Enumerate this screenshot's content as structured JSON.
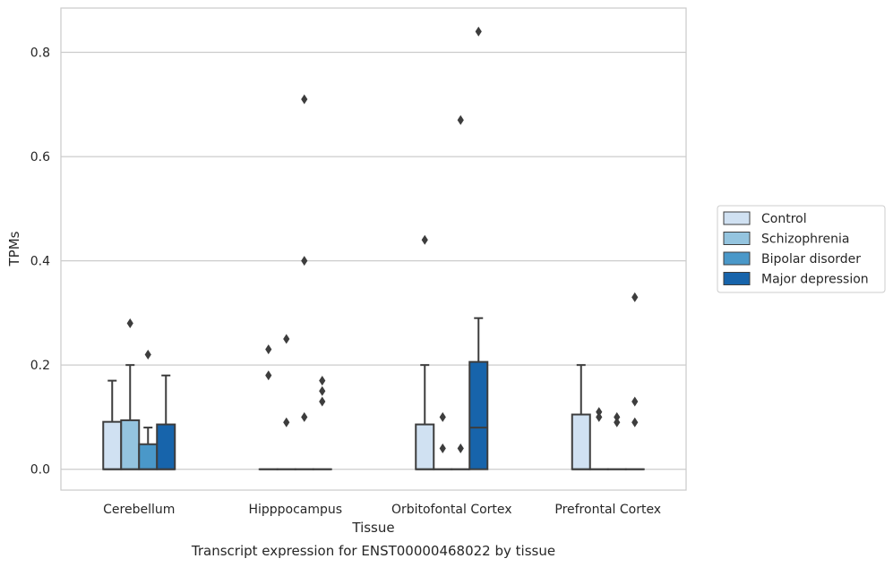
{
  "chart_data": {
    "type": "box",
    "xlabel": "Tissue",
    "ylabel": "TPMs",
    "caption": "Transcript expression for ENST00000468022 by tissue",
    "ylim": [
      -0.04,
      0.885
    ],
    "yticks": [
      0.0,
      0.2,
      0.4,
      0.6,
      0.8
    ],
    "ytick_labels": [
      "0.0",
      "0.2",
      "0.4",
      "0.6",
      "0.8"
    ],
    "grid": "horizontal",
    "legend_position": "right",
    "categories": [
      "Cerebellum",
      "Hipppocampus",
      "Orbitofontal Cortex",
      "Prefrontal Cortex"
    ],
    "series": [
      {
        "name": "Control",
        "color": "#d0e1f2",
        "boxes": [
          {
            "q1": 0.0,
            "median": 0.0,
            "q3": 0.091,
            "whisker_low": 0.0,
            "whisker_high": 0.17,
            "outliers": []
          },
          {
            "q1": 0.0,
            "median": 0.0,
            "q3": 0.0,
            "whisker_low": 0.0,
            "whisker_high": 0.0,
            "outliers": [
              0.23,
              0.18
            ]
          },
          {
            "q1": 0.0,
            "median": 0.0,
            "q3": 0.086,
            "whisker_low": 0.0,
            "whisker_high": 0.2,
            "outliers": [
              0.44
            ]
          },
          {
            "q1": 0.0,
            "median": 0.0,
            "q3": 0.105,
            "whisker_low": 0.0,
            "whisker_high": 0.2,
            "outliers": []
          }
        ]
      },
      {
        "name": "Schizophrenia",
        "color": "#94c4df",
        "boxes": [
          {
            "q1": 0.0,
            "median": 0.0,
            "q3": 0.094,
            "whisker_low": 0.0,
            "whisker_high": 0.2,
            "outliers": [
              0.28
            ]
          },
          {
            "q1": 0.0,
            "median": 0.0,
            "q3": 0.0,
            "whisker_low": 0.0,
            "whisker_high": 0.0,
            "outliers": [
              0.25,
              0.09
            ]
          },
          {
            "q1": 0.0,
            "median": 0.0,
            "q3": 0.0,
            "whisker_low": 0.0,
            "whisker_high": 0.0,
            "outliers": [
              0.1,
              0.04
            ]
          },
          {
            "q1": 0.0,
            "median": 0.0,
            "q3": 0.0,
            "whisker_low": 0.0,
            "whisker_high": 0.0,
            "outliers": [
              0.11,
              0.1
            ]
          }
        ]
      },
      {
        "name": "Bipolar disorder",
        "color": "#4a98c9",
        "boxes": [
          {
            "q1": 0.0,
            "median": 0.0,
            "q3": 0.048,
            "whisker_low": 0.0,
            "whisker_high": 0.08,
            "outliers": [
              0.22
            ]
          },
          {
            "q1": 0.0,
            "median": 0.0,
            "q3": 0.0,
            "whisker_low": 0.0,
            "whisker_high": 0.0,
            "outliers": [
              0.71,
              0.4,
              0.1
            ]
          },
          {
            "q1": 0.0,
            "median": 0.0,
            "q3": 0.0,
            "whisker_low": 0.0,
            "whisker_high": 0.0,
            "outliers": [
              0.67,
              0.04
            ]
          },
          {
            "q1": 0.0,
            "median": 0.0,
            "q3": 0.0,
            "whisker_low": 0.0,
            "whisker_high": 0.0,
            "outliers": [
              0.1,
              0.09
            ]
          }
        ]
      },
      {
        "name": "Major depression",
        "color": "#1764ab",
        "boxes": [
          {
            "q1": 0.0,
            "median": 0.0,
            "q3": 0.086,
            "whisker_low": 0.0,
            "whisker_high": 0.18,
            "outliers": []
          },
          {
            "q1": 0.0,
            "median": 0.0,
            "q3": 0.0,
            "whisker_low": 0.0,
            "whisker_high": 0.0,
            "outliers": [
              0.17,
              0.15,
              0.13
            ]
          },
          {
            "q1": 0.0,
            "median": 0.08,
            "q3": 0.206,
            "whisker_low": 0.0,
            "whisker_high": 0.29,
            "outliers": [
              0.84
            ]
          },
          {
            "q1": 0.0,
            "median": 0.0,
            "q3": 0.0,
            "whisker_low": 0.0,
            "whisker_high": 0.0,
            "outliers": [
              0.33,
              0.13,
              0.09
            ]
          }
        ]
      }
    ]
  }
}
